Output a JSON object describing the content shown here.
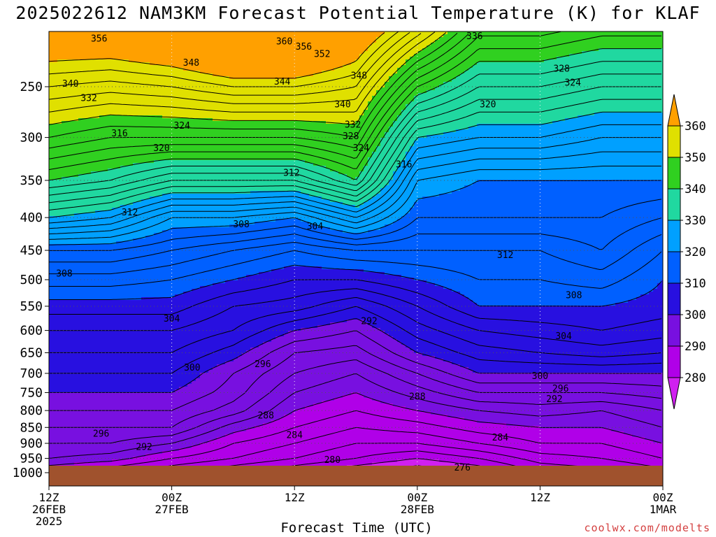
{
  "chart_data": {
    "type": "heatmap",
    "title": "2025022612 NAM3KM Forecast Potential Temperature (K) for KLAF",
    "xlabel": "Forecast Time (UTC)",
    "ylabel": "",
    "credit": "coolwx.com/modelts",
    "y_axis": {
      "scale": "log-pressure",
      "inverted": true,
      "ylim": [
        1000,
        200
      ],
      "ticks": [
        250,
        300,
        350,
        400,
        450,
        500,
        550,
        600,
        650,
        700,
        750,
        800,
        850,
        900,
        950,
        1000
      ]
    },
    "x_axis": {
      "xlim_hours": [
        0,
        60
      ],
      "ticks": [
        {
          "hour": 0,
          "lines": [
            "12Z",
            "26FEB",
            "2025"
          ]
        },
        {
          "hour": 12,
          "lines": [
            "00Z",
            "27FEB"
          ]
        },
        {
          "hour": 24,
          "lines": [
            "12Z"
          ]
        },
        {
          "hour": 36,
          "lines": [
            "00Z",
            "28FEB"
          ]
        },
        {
          "hour": 48,
          "lines": [
            "12Z"
          ]
        },
        {
          "hour": 60,
          "lines": [
            "00Z",
            "1MAR"
          ]
        }
      ]
    },
    "grid": true,
    "colorbar": {
      "levels": [
        280,
        290,
        300,
        310,
        320,
        330,
        340,
        350,
        360
      ],
      "colors": [
        "#b000e8",
        "#7810e0",
        "#2810e0",
        "#0060ff",
        "#00a0ff",
        "#20d8a0",
        "#30d020",
        "#e0e000",
        "#ffa000"
      ]
    },
    "surface_color": "#a0522d",
    "contour_interval_K": 2,
    "series": [
      {
        "hour": 0,
        "theta_K": [
          356,
          348,
          340,
          330,
          318,
          313,
          309,
          306,
          304,
          302,
          300,
          298,
          296,
          294,
          292,
          288
        ]
      },
      {
        "hour": 6,
        "theta_K": [
          355,
          346,
          338,
          328,
          318,
          313,
          309,
          306,
          304,
          302,
          300,
          298,
          296,
          294,
          291,
          286
        ]
      },
      {
        "hour": 12,
        "theta_K": [
          356,
          346,
          334,
          322,
          316,
          312,
          309,
          306,
          304,
          302,
          300,
          298,
          296,
          292,
          288,
          284
        ]
      },
      {
        "hour": 18,
        "theta_K": [
          358,
          346,
          334,
          322,
          314,
          310,
          306,
          304,
          301,
          298,
          297,
          295,
          291,
          288,
          286,
          282
        ]
      },
      {
        "hour": 24,
        "theta_K": [
          358,
          346,
          334,
          320,
          312,
          308,
          305,
          300,
          296,
          294,
          292,
          290,
          288,
          286,
          284,
          280
        ]
      },
      {
        "hour": 30,
        "theta_K": [
          356,
          348,
          340,
          326,
          314,
          308,
          302,
          298,
          295,
          292,
          290,
          288,
          286,
          284,
          282,
          278
        ]
      },
      {
        "hour": 36,
        "theta_K": [
          342,
          330,
          322,
          318,
          314,
          310,
          306,
          303,
          300,
          296,
          293,
          290,
          287,
          284,
          280,
          276
        ]
      },
      {
        "hour": 42,
        "theta_K": [
          336,
          328,
          320,
          318,
          314,
          312,
          310,
          306,
          303,
          300,
          296,
          292,
          289,
          286,
          282,
          278
        ]
      },
      {
        "hour": 48,
        "theta_K": [
          336,
          328,
          320,
          318,
          314,
          312,
          310,
          307,
          304,
          300,
          296,
          293,
          290,
          288,
          285,
          282
        ]
      },
      {
        "hour": 54,
        "theta_K": [
          334,
          326,
          320,
          318,
          316,
          313,
          310,
          308,
          305,
          300,
          296,
          292,
          290,
          288,
          286,
          283
        ]
      },
      {
        "hour": 60,
        "theta_K": [
          334,
          326,
          320,
          316,
          312,
          310,
          309,
          307,
          304,
          300,
          297,
          294,
          292,
          290,
          288,
          285
        ]
      }
    ],
    "annotations": [
      {
        "text": "356",
        "hour": 4.9,
        "p": 210
      },
      {
        "text": "360",
        "hour": 23.0,
        "p": 212
      },
      {
        "text": "356",
        "hour": 24.9,
        "p": 216
      },
      {
        "text": "352",
        "hour": 26.7,
        "p": 222
      },
      {
        "text": "348",
        "hour": 13.9,
        "p": 229
      },
      {
        "text": "348",
        "hour": 30.3,
        "p": 240
      },
      {
        "text": "344",
        "hour": 22.8,
        "p": 245
      },
      {
        "text": "340",
        "hour": 2.1,
        "p": 247
      },
      {
        "text": "332",
        "hour": 3.9,
        "p": 260
      },
      {
        "text": "340",
        "hour": 28.7,
        "p": 266
      },
      {
        "text": "336",
        "hour": 41.6,
        "p": 208
      },
      {
        "text": "328",
        "hour": 50.1,
        "p": 234
      },
      {
        "text": "324",
        "hour": 51.2,
        "p": 246
      },
      {
        "text": "320",
        "hour": 42.9,
        "p": 266
      },
      {
        "text": "332",
        "hour": 29.7,
        "p": 286
      },
      {
        "text": "328",
        "hour": 29.5,
        "p": 298
      },
      {
        "text": "324",
        "hour": 30.5,
        "p": 311
      },
      {
        "text": "316",
        "hour": 6.9,
        "p": 295
      },
      {
        "text": "324",
        "hour": 13.0,
        "p": 287
      },
      {
        "text": "320",
        "hour": 11.0,
        "p": 311
      },
      {
        "text": "316",
        "hour": 34.7,
        "p": 330
      },
      {
        "text": "312",
        "hour": 23.7,
        "p": 340
      },
      {
        "text": "312",
        "hour": 7.9,
        "p": 392
      },
      {
        "text": "308",
        "hour": 18.8,
        "p": 409
      },
      {
        "text": "304",
        "hour": 26.0,
        "p": 412
      },
      {
        "text": "312",
        "hour": 44.6,
        "p": 457
      },
      {
        "text": "308",
        "hour": 1.5,
        "p": 488
      },
      {
        "text": "308",
        "hour": 51.3,
        "p": 528
      },
      {
        "text": "304",
        "hour": 12.0,
        "p": 574
      },
      {
        "text": "292",
        "hour": 31.3,
        "p": 579
      },
      {
        "text": "304",
        "hour": 50.3,
        "p": 611
      },
      {
        "text": "296",
        "hour": 20.9,
        "p": 676
      },
      {
        "text": "300",
        "hour": 14.0,
        "p": 684
      },
      {
        "text": "300",
        "hour": 48.0,
        "p": 705
      },
      {
        "text": "296",
        "hour": 50.0,
        "p": 738
      },
      {
        "text": "292",
        "hour": 49.4,
        "p": 766
      },
      {
        "text": "288",
        "hour": 36.0,
        "p": 760
      },
      {
        "text": "288",
        "hour": 21.2,
        "p": 813
      },
      {
        "text": "296",
        "hour": 5.1,
        "p": 868
      },
      {
        "text": "284",
        "hour": 24.0,
        "p": 872
      },
      {
        "text": "284",
        "hour": 44.1,
        "p": 880
      },
      {
        "text": "292",
        "hour": 9.3,
        "p": 910
      },
      {
        "text": "280",
        "hour": 27.7,
        "p": 954
      },
      {
        "text": "276",
        "hour": 40.4,
        "p": 980
      }
    ]
  }
}
